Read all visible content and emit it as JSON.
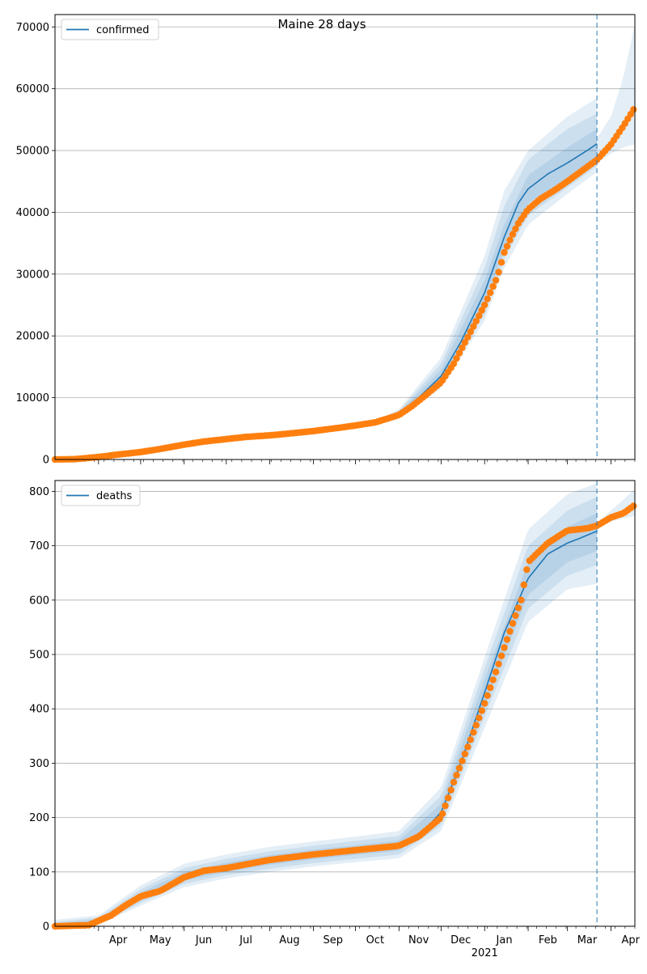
{
  "figure": {
    "title": "Maine 28 days"
  },
  "chart_data": [
    {
      "type": "line",
      "legend": {
        "label": "confirmed",
        "placement": "top-left"
      },
      "grid": "horizontal",
      "x_type": "date",
      "xlim": [
        "2020-03-01",
        "2021-04-18"
      ],
      "ylim": [
        0,
        72000
      ],
      "yticks": [
        0,
        10000,
        20000,
        30000,
        40000,
        50000,
        60000,
        70000
      ],
      "forecast_start": "2021-03-22",
      "model_line": {
        "name": "confirmed",
        "color": "#1f77b4",
        "points": [
          [
            "2020-03-01",
            0
          ],
          [
            "2020-04-01",
            400
          ],
          [
            "2020-05-01",
            1200
          ],
          [
            "2020-06-01",
            2400
          ],
          [
            "2020-07-01",
            3300
          ],
          [
            "2020-08-01",
            3900
          ],
          [
            "2020-09-01",
            4600
          ],
          [
            "2020-10-01",
            5600
          ],
          [
            "2020-10-20",
            6200
          ],
          [
            "2020-11-01",
            7500
          ],
          [
            "2020-11-15",
            10000
          ],
          [
            "2020-12-01",
            13500
          ],
          [
            "2020-12-15",
            19000
          ],
          [
            "2021-01-01",
            27000
          ],
          [
            "2021-01-15",
            36000
          ],
          [
            "2021-01-25",
            41500
          ],
          [
            "2021-02-01",
            43800
          ],
          [
            "2021-02-15",
            46200
          ],
          [
            "2021-03-01",
            48000
          ],
          [
            "2021-03-15",
            50000
          ],
          [
            "2021-03-22",
            51100
          ]
        ]
      },
      "observed": {
        "color": "#ff7f0e",
        "points": [
          [
            "2020-03-01",
            0
          ],
          [
            "2020-03-15",
            50
          ],
          [
            "2020-04-01",
            400
          ],
          [
            "2020-04-15",
            800
          ],
          [
            "2020-05-01",
            1200
          ],
          [
            "2020-05-15",
            1700
          ],
          [
            "2020-06-01",
            2400
          ],
          [
            "2020-06-15",
            2900
          ],
          [
            "2020-07-01",
            3300
          ],
          [
            "2020-07-15",
            3650
          ],
          [
            "2020-08-01",
            3900
          ],
          [
            "2020-08-15",
            4200
          ],
          [
            "2020-09-01",
            4600
          ],
          [
            "2020-09-15",
            5000
          ],
          [
            "2020-10-01",
            5500
          ],
          [
            "2020-10-15",
            6000
          ],
          [
            "2020-11-01",
            7200
          ],
          [
            "2020-11-10",
            8600
          ],
          [
            "2020-11-20",
            10400
          ],
          [
            "2020-12-01",
            12500
          ],
          [
            "2020-12-10",
            15500
          ],
          [
            "2020-12-20",
            19800
          ],
          [
            "2021-01-01",
            25000
          ],
          [
            "2021-01-10",
            29500
          ],
          [
            "2021-01-15",
            33500
          ],
          [
            "2021-01-20",
            36000
          ],
          [
            "2021-01-25",
            38200
          ],
          [
            "2021-02-01",
            40500
          ],
          [
            "2021-02-10",
            42200
          ],
          [
            "2021-02-20",
            43600
          ],
          [
            "2021-03-01",
            45000
          ],
          [
            "2021-03-10",
            46500
          ],
          [
            "2021-03-22",
            48500
          ],
          [
            "2021-04-01",
            51000
          ],
          [
            "2021-04-10",
            54000
          ],
          [
            "2021-04-18",
            57000
          ]
        ]
      },
      "bands": {
        "color": "#1f77b4",
        "inner": [
          [
            "2020-03-01",
            0,
            0
          ],
          [
            "2020-10-15",
            6000,
            6000
          ],
          [
            "2020-11-01",
            7300,
            7700
          ],
          [
            "2020-12-01",
            12500,
            14500
          ],
          [
            "2021-01-01",
            25000,
            29000
          ],
          [
            "2021-01-15",
            34000,
            38000
          ],
          [
            "2021-02-01",
            41500,
            46000
          ],
          [
            "2021-03-01",
            45500,
            50500
          ],
          [
            "2021-03-22",
            48500,
            53500
          ]
        ],
        "middle": [
          [
            "2020-03-01",
            0,
            0
          ],
          [
            "2020-10-15",
            5900,
            6100
          ],
          [
            "2020-11-01",
            7100,
            7900
          ],
          [
            "2020-12-01",
            12000,
            15500
          ],
          [
            "2021-01-01",
            23500,
            31000
          ],
          [
            "2021-01-15",
            32500,
            41000
          ],
          [
            "2021-02-01",
            39500,
            48500
          ],
          [
            "2021-03-01",
            44000,
            53500
          ],
          [
            "2021-03-22",
            47500,
            56000
          ]
        ],
        "outer": [
          [
            "2020-03-01",
            0,
            0
          ],
          [
            "2020-10-15",
            5800,
            6200
          ],
          [
            "2020-11-01",
            6900,
            8100
          ],
          [
            "2020-12-01",
            11500,
            16500
          ],
          [
            "2021-01-01",
            22500,
            33000
          ],
          [
            "2021-01-15",
            31000,
            43500
          ],
          [
            "2021-02-01",
            38000,
            50000
          ],
          [
            "2021-03-01",
            43000,
            55500
          ],
          [
            "2021-03-22",
            46500,
            58500
          ]
        ],
        "forecast": [
          [
            "2021-03-22",
            48000,
            52000
          ],
          [
            "2021-04-01",
            49500,
            55500
          ],
          [
            "2021-04-10",
            50500,
            62000
          ],
          [
            "2021-04-18",
            51000,
            70500
          ]
        ]
      }
    },
    {
      "type": "line",
      "legend": {
        "label": "deaths",
        "placement": "top-left"
      },
      "grid": "horizontal",
      "x_type": "date",
      "xlim": [
        "2020-03-01",
        "2021-04-18"
      ],
      "ylim": [
        0,
        820
      ],
      "yticks": [
        0,
        100,
        200,
        300,
        400,
        500,
        600,
        700,
        800
      ],
      "xticks": [
        "Apr",
        "May",
        "Jun",
        "Jul",
        "Aug",
        "Sep",
        "Oct",
        "Nov",
        "Dec",
        "Jan",
        "Feb",
        "Mar",
        "Apr"
      ],
      "xtick_dates": [
        "2020-04-01",
        "2020-05-01",
        "2020-06-01",
        "2020-07-01",
        "2020-08-01",
        "2020-09-01",
        "2020-10-01",
        "2020-11-01",
        "2020-12-01",
        "2021-01-01",
        "2021-02-01",
        "2021-03-01",
        "2021-04-01"
      ],
      "year_label": "2021",
      "forecast_start": "2021-03-22",
      "model_line": {
        "name": "deaths",
        "color": "#1f77b4",
        "points": [
          [
            "2020-03-01",
            0
          ],
          [
            "2020-03-25",
            3
          ],
          [
            "2020-04-01",
            10
          ],
          [
            "2020-04-15",
            30
          ],
          [
            "2020-05-01",
            55
          ],
          [
            "2020-05-15",
            70
          ],
          [
            "2020-06-01",
            92
          ],
          [
            "2020-06-15",
            102
          ],
          [
            "2020-07-01",
            108
          ],
          [
            "2020-08-01",
            122
          ],
          [
            "2020-09-01",
            132
          ],
          [
            "2020-10-01",
            140
          ],
          [
            "2020-11-01",
            148
          ],
          [
            "2020-11-15",
            165
          ],
          [
            "2020-12-01",
            210
          ],
          [
            "2020-12-15",
            300
          ],
          [
            "2021-01-01",
            430
          ],
          [
            "2021-01-15",
            540
          ],
          [
            "2021-02-01",
            640
          ],
          [
            "2021-02-15",
            685
          ],
          [
            "2021-03-01",
            705
          ],
          [
            "2021-03-10",
            714
          ],
          [
            "2021-03-22",
            727
          ]
        ]
      },
      "observed": {
        "color": "#ff7f0e",
        "points": [
          [
            "2020-03-01",
            0
          ],
          [
            "2020-03-25",
            2
          ],
          [
            "2020-04-01",
            10
          ],
          [
            "2020-04-10",
            20
          ],
          [
            "2020-04-20",
            38
          ],
          [
            "2020-05-01",
            55
          ],
          [
            "2020-05-15",
            65
          ],
          [
            "2020-06-01",
            90
          ],
          [
            "2020-06-15",
            102
          ],
          [
            "2020-07-01",
            107
          ],
          [
            "2020-08-01",
            122
          ],
          [
            "2020-09-01",
            132
          ],
          [
            "2020-10-01",
            140
          ],
          [
            "2020-11-01",
            148
          ],
          [
            "2020-11-15",
            165
          ],
          [
            "2020-12-01",
            200
          ],
          [
            "2020-12-10",
            265
          ],
          [
            "2020-12-20",
            330
          ],
          [
            "2021-01-01",
            410
          ],
          [
            "2021-01-10",
            475
          ],
          [
            "2021-01-20",
            550
          ],
          [
            "2021-01-27",
            600
          ],
          [
            "2021-02-01",
            670
          ],
          [
            "2021-02-15",
            705
          ],
          [
            "2021-03-01",
            728
          ],
          [
            "2021-03-15",
            732
          ],
          [
            "2021-03-22",
            737
          ],
          [
            "2021-04-01",
            752
          ],
          [
            "2021-04-10",
            760
          ],
          [
            "2021-04-18",
            775
          ]
        ]
      },
      "bands": {
        "color": "#1f77b4",
        "inner": [
          [
            "2020-03-01",
            0,
            5
          ],
          [
            "2020-04-01",
            7,
            13
          ],
          [
            "2020-05-01",
            48,
            62
          ],
          [
            "2020-06-01",
            84,
            100
          ],
          [
            "2020-07-01",
            100,
            117
          ],
          [
            "2020-08-01",
            113,
            131
          ],
          [
            "2020-09-01",
            123,
            141
          ],
          [
            "2020-10-01",
            131,
            149
          ],
          [
            "2020-11-01",
            139,
            158
          ],
          [
            "2020-12-01",
            195,
            225
          ],
          [
            "2021-01-01",
            405,
            455
          ],
          [
            "2021-02-01",
            610,
            670
          ],
          [
            "2021-03-01",
            670,
            735
          ],
          [
            "2021-03-22",
            690,
            760
          ]
        ],
        "middle": [
          [
            "2020-03-01",
            0,
            8
          ],
          [
            "2020-04-01",
            5,
            16
          ],
          [
            "2020-05-01",
            43,
            68
          ],
          [
            "2020-06-01",
            78,
            107
          ],
          [
            "2020-07-01",
            94,
            124
          ],
          [
            "2020-08-01",
            106,
            138
          ],
          [
            "2020-09-01",
            116,
            148
          ],
          [
            "2020-10-01",
            124,
            157
          ],
          [
            "2020-11-01",
            132,
            166
          ],
          [
            "2020-12-01",
            185,
            240
          ],
          [
            "2021-01-01",
            385,
            475
          ],
          [
            "2021-02-01",
            585,
            700
          ],
          [
            "2021-03-01",
            645,
            765
          ],
          [
            "2021-03-22",
            665,
            790
          ]
        ],
        "outer": [
          [
            "2020-03-01",
            0,
            12
          ],
          [
            "2020-04-01",
            3,
            20
          ],
          [
            "2020-05-01",
            38,
            75
          ],
          [
            "2020-06-01",
            72,
            115
          ],
          [
            "2020-07-01",
            88,
            132
          ],
          [
            "2020-08-01",
            100,
            146
          ],
          [
            "2020-09-01",
            110,
            156
          ],
          [
            "2020-10-01",
            118,
            165
          ],
          [
            "2020-11-01",
            125,
            175
          ],
          [
            "2020-12-01",
            175,
            255
          ],
          [
            "2021-01-01",
            365,
            495
          ],
          [
            "2021-02-01",
            560,
            730
          ],
          [
            "2021-03-01",
            620,
            795
          ],
          [
            "2021-03-22",
            630,
            815
          ]
        ],
        "forecast": [
          [
            "2021-03-22",
            735,
            742
          ],
          [
            "2021-04-01",
            745,
            765
          ],
          [
            "2021-04-10",
            750,
            785
          ],
          [
            "2021-04-18",
            755,
            805
          ]
        ]
      }
    }
  ]
}
